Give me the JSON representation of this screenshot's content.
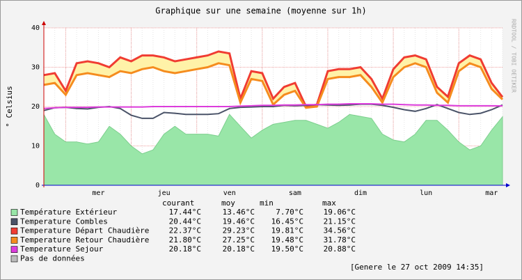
{
  "chart_data": {
    "type": "line",
    "title": "Graphique sur une semaine (moyenne sur 1h)",
    "ylabel": "° Celsius",
    "watermark": "RRDTOOL / TOBI OETIKER",
    "categories": [
      null,
      null,
      null,
      null,
      null,
      "mer",
      null,
      null,
      null,
      null,
      null,
      "jeu",
      null,
      null,
      null,
      null,
      null,
      "ven",
      null,
      null,
      null,
      null,
      null,
      "sam",
      null,
      null,
      null,
      null,
      null,
      "dim",
      null,
      null,
      null,
      null,
      null,
      "lun",
      null,
      null,
      null,
      null,
      null,
      "mar",
      null
    ],
    "ylim": [
      0,
      40
    ],
    "yticks": [
      0,
      10,
      20,
      30,
      40
    ],
    "grid": true,
    "stat_headers": [
      "courant",
      "moy",
      "min",
      "max"
    ],
    "series": [
      {
        "name": "Température Extérieur",
        "color": "#99e6a8",
        "style": "area",
        "values": [
          18,
          13,
          11,
          11,
          10.5,
          11,
          15,
          13,
          10,
          8,
          9,
          13,
          15,
          13,
          13,
          13,
          12.5,
          18,
          15,
          12,
          14,
          15.5,
          16,
          16.5,
          16.5,
          15.5,
          14.5,
          16,
          18,
          17.5,
          17,
          13,
          11.5,
          11,
          13,
          16.5,
          16.5,
          14,
          11,
          9,
          10,
          14,
          17.4
        ],
        "stats": [
          "17.44°C",
          "13.46°C",
          "7.70°C",
          "19.06°C"
        ]
      },
      {
        "name": "Temperature Combles",
        "color": "#4a5368",
        "style": "line",
        "values": [
          19,
          19.7,
          19.8,
          19.5,
          19.4,
          19.8,
          20,
          19.5,
          17.8,
          17,
          17,
          18.5,
          18.3,
          18,
          18,
          18,
          18.2,
          19.5,
          19.8,
          19.9,
          20,
          20,
          20.3,
          20.2,
          20.3,
          20.5,
          20.4,
          20.3,
          20.4,
          20.6,
          20.6,
          20.3,
          19.8,
          19.2,
          18.8,
          19.5,
          20.5,
          19.5,
          18.5,
          18,
          18.3,
          19.2,
          20.4
        ],
        "stats": [
          "20.44°C",
          "19.46°C",
          "16.45°C",
          "21.15°C"
        ]
      },
      {
        "name": "Temperature Départ Chaudière",
        "color": "#f03c32",
        "style": "line",
        "fill": "#fff2a8",
        "values": [
          28,
          28.5,
          24,
          31,
          31.5,
          31,
          30,
          32.5,
          31.5,
          33,
          33,
          32.5,
          31.5,
          32,
          32.5,
          33,
          34,
          33.5,
          22,
          29,
          28.5,
          22,
          25,
          26,
          20,
          20.5,
          29,
          29.5,
          29.5,
          30,
          27,
          22,
          29.5,
          32.5,
          33,
          32,
          25,
          22.5,
          31,
          33,
          32,
          26,
          22.4
        ],
        "stats": [
          "22.37°C",
          "29.23°C",
          "19.81°C",
          "34.56°C"
        ]
      },
      {
        "name": "Temperature Retour Chaudière",
        "color": "#f58c1e",
        "style": "line",
        "values": [
          25.5,
          26,
          23,
          28,
          28.5,
          28,
          27.5,
          29,
          28.5,
          29.5,
          30,
          29,
          28.5,
          29,
          29.5,
          30,
          31,
          30.5,
          21,
          27,
          26.5,
          20.5,
          23,
          24,
          19.7,
          20,
          27,
          27.5,
          27.5,
          28,
          25,
          21,
          27.5,
          30,
          31,
          30,
          23.5,
          21,
          29,
          31,
          30,
          24.5,
          21.8
        ],
        "stats": [
          "21.80°C",
          "27.25°C",
          "19.48°C",
          "31.78°C"
        ]
      },
      {
        "name": "Temperature Sejour",
        "color": "#dc3cdc",
        "style": "line",
        "values": [
          19.5,
          19.7,
          19.8,
          19.8,
          19.8,
          19.9,
          19.9,
          19.9,
          19.9,
          19.9,
          20,
          20,
          20,
          20,
          20,
          20,
          20,
          20,
          20.1,
          20.2,
          20.3,
          20.3,
          20.4,
          20.4,
          20.5,
          20.5,
          20.6,
          20.6,
          20.7,
          20.7,
          20.7,
          20.6,
          20.6,
          20.5,
          20.4,
          20.4,
          20.3,
          20.3,
          20.2,
          20.2,
          20.2,
          20.2,
          20.18
        ],
        "stats": [
          "20.18°C",
          "20.18°C",
          "19.50°C",
          "20.88°C"
        ]
      }
    ],
    "no_data": {
      "label": "Pas de données",
      "color": "#bbbbbb"
    },
    "footer": "[Genere le 27 oct 2009 14:35]"
  }
}
